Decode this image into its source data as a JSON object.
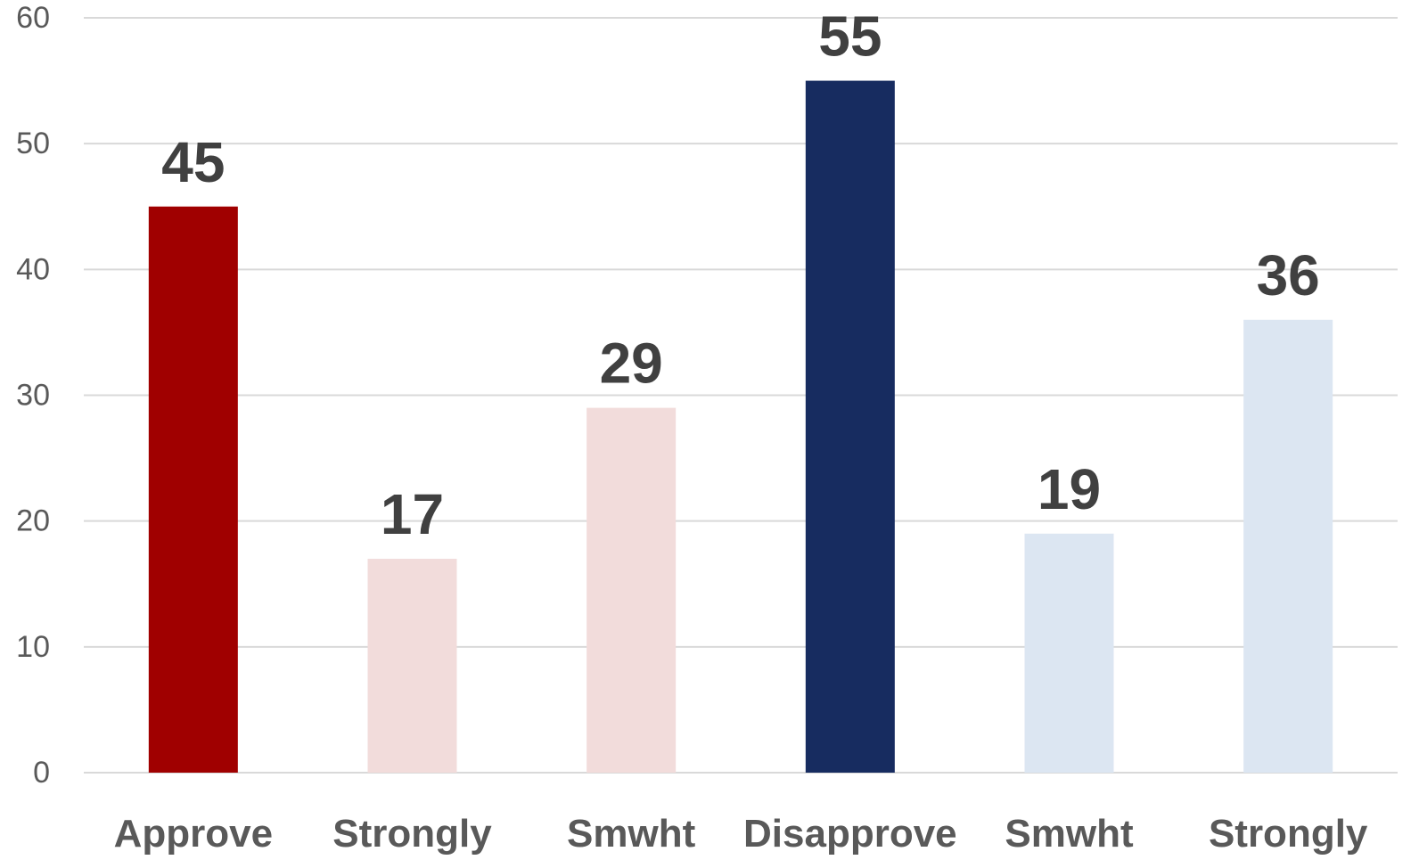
{
  "chart_data": {
    "type": "bar",
    "title": "",
    "xlabel": "",
    "ylabel": "",
    "categories": [
      "Approve",
      "Strongly",
      "Smwht",
      "Disapprove",
      "Smwht",
      "Strongly"
    ],
    "values": [
      45,
      17,
      29,
      55,
      19,
      36
    ],
    "data_labels": [
      "45",
      "17",
      "29",
      "55",
      "19",
      "36"
    ],
    "bar_colors": [
      "#A00000",
      "#F2DCDB",
      "#F2DCDB",
      "#172C60",
      "#DCE6F2",
      "#DCE6F2"
    ],
    "ylim": [
      0,
      60
    ],
    "yticks": [
      0,
      10,
      20,
      30,
      40,
      50,
      60
    ],
    "ytick_labels": [
      "0",
      "10",
      "20",
      "30",
      "40",
      "50",
      "60"
    ],
    "grid": true,
    "legend": "none",
    "gridline_color": "#D9D9D9",
    "axis_text_color": "#595959",
    "data_label_color": "#404040"
  }
}
